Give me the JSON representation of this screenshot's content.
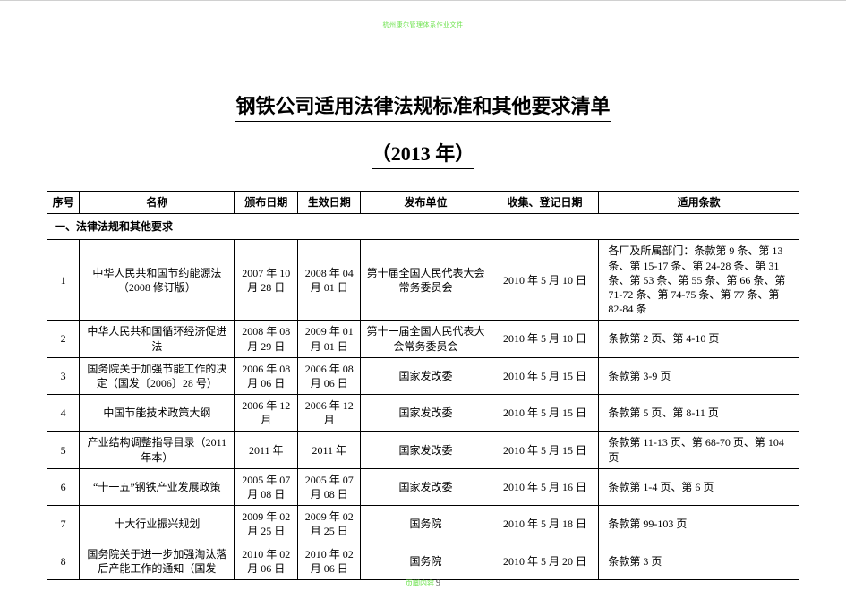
{
  "watermark_top": "杭州康尔管理体系作业文件",
  "title": "钢铁公司适用法律法规标准和其他要求清单",
  "subtitle": "（2013 年）",
  "columns": [
    "序号",
    "名称",
    "颁布日期",
    "生效日期",
    "发布单位",
    "收集、登记日期",
    "适用条款"
  ],
  "section_label": "一、法律法规和其他要求",
  "rows": [
    {
      "no": "1",
      "name": "中华人民共和国节约能源法（2008 修订版）",
      "issued": "2007 年 10 月 28 日",
      "effective": "2008 年 04 月 01 日",
      "issuer": "第十届全国人民代表大会常务委员会",
      "collected": "2010 年 5 月 10 日",
      "scope": "各厂及所属部门：条款第 9 条、第 13 条、第 15-17 条、第 24-28 条、第 31 条、第 53 条、第 55 条、第 66 条、第 71-72 条、第 74-75 条、第 77 条、第 82-84 条"
    },
    {
      "no": "2",
      "name": "中华人民共和国循环经济促进法",
      "issued": "2008 年 08 月 29 日",
      "effective": "2009 年 01 月 01 日",
      "issuer": "第十一届全国人民代表大会常务委员会",
      "collected": "2010 年 5 月 10 日",
      "scope": "条款第 2 页、第 4-10 页"
    },
    {
      "no": "3",
      "name": "国务院关于加强节能工作的决定（国发〔2006〕28 号）",
      "issued": "2006 年 08 月 06 日",
      "effective": "2006 年 08 月 06 日",
      "issuer": "国家发改委",
      "collected": "2010 年 5 月 15 日",
      "scope": "条款第 3-9 页"
    },
    {
      "no": "4",
      "name": "中国节能技术政策大纲",
      "issued": "2006 年 12 月",
      "effective": "2006 年 12 月",
      "issuer": "国家发改委",
      "collected": "2010 年 5 月 15 日",
      "scope": "条款第 5 页、第 8-11 页"
    },
    {
      "no": "5",
      "name": "产业结构调整指导目录（2011 年本）",
      "issued": "2011 年",
      "effective": "2011 年",
      "issuer": "国家发改委",
      "collected": "2010 年 5 月 15 日",
      "scope": "条款第 11-13 页、第 68-70 页、第 104 页"
    },
    {
      "no": "6",
      "name": "“十一五”钢铁产业发展政策",
      "issued": "2005 年 07 月 08 日",
      "effective": "2005 年 07 月 08 日",
      "issuer": "国家发改委",
      "collected": "2010 年 5 月 16 日",
      "scope": "条款第 1-4 页、第 6 页"
    },
    {
      "no": "7",
      "name": "十大行业振兴规划",
      "issued": "2009 年 02 月 25 日",
      "effective": "2009 年 02 月 25 日",
      "issuer": "国务院",
      "collected": "2010 年 5 月 18 日",
      "scope": "条款第 99-103 页"
    },
    {
      "no": "8",
      "name": "国务院关于进一步加强淘汰落后产能工作的通知（国发",
      "issued": "2010 年 02 月 06 日",
      "effective": "2010 年 02 月 06 日",
      "issuer": "国务院",
      "collected": "2010 年 5 月 20 日",
      "scope": "条款第 3 页"
    }
  ],
  "footer_prefix": "页脚内容",
  "page_number": "9"
}
